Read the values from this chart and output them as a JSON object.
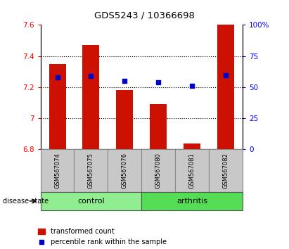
{
  "title": "GDS5243 / 10366698",
  "samples": [
    "GSM567074",
    "GSM567075",
    "GSM567076",
    "GSM567080",
    "GSM567081",
    "GSM567082"
  ],
  "red_values": [
    7.35,
    7.47,
    7.18,
    7.09,
    6.84,
    7.6
  ],
  "blue_values": [
    7.265,
    7.27,
    7.24,
    7.23,
    7.21,
    7.275
  ],
  "ymin": 6.8,
  "ymax": 7.6,
  "y_ticks_left": [
    6.8,
    7.0,
    7.2,
    7.4,
    7.6
  ],
  "y_ticks_left_labels": [
    "6.8",
    "7",
    "7.2",
    "7.4",
    "7.6"
  ],
  "y_ticks_right": [
    0,
    25,
    50,
    75,
    100
  ],
  "y_ticks_right_labels": [
    "0",
    "25",
    "50",
    "75",
    "100%"
  ],
  "legend_red": "transformed count",
  "legend_blue": "percentile rank within the sample",
  "bar_color": "#CC1100",
  "dot_color": "#0000CC",
  "bar_width": 0.5,
  "dot_size": 25,
  "control_color": "#90EE90",
  "arthritis_color": "#55DD55",
  "label_bg": "#C8C8C8"
}
